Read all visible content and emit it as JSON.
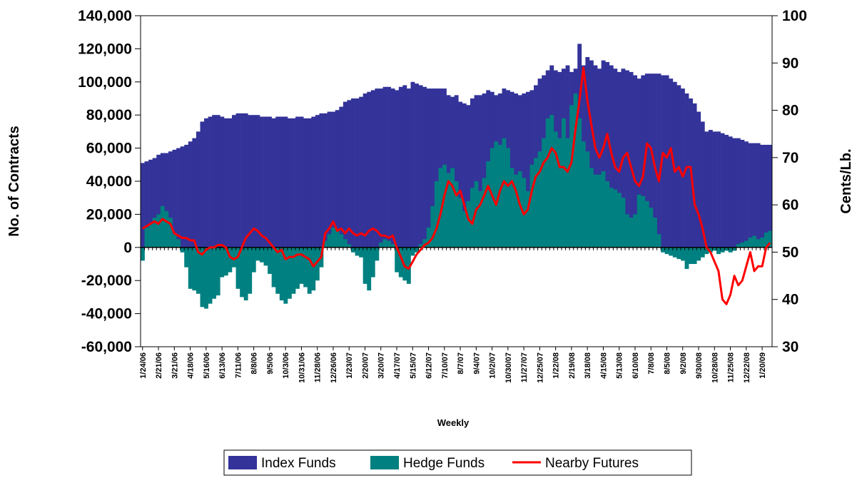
{
  "chart_data": {
    "type": "bar-line",
    "x_label": "Weekly",
    "y_label": "No. of Contracts",
    "y2_label": "Cents/Lb.",
    "categories": [
      "1/24/06",
      null,
      null,
      null,
      "2/21/06",
      null,
      null,
      null,
      "3/21/06",
      null,
      null,
      null,
      "4/18/06",
      null,
      null,
      null,
      "5/16/06",
      null,
      null,
      null,
      "6/13/06",
      null,
      null,
      null,
      "7/11/06",
      null,
      null,
      null,
      "8/8/06",
      null,
      null,
      null,
      "9/5/06",
      null,
      null,
      null,
      "10/3/06",
      null,
      null,
      null,
      "10/31/06",
      null,
      null,
      null,
      "11/28/06",
      null,
      null,
      null,
      "12/26/06",
      null,
      null,
      null,
      "1/23/07",
      null,
      null,
      null,
      "2/20/07",
      null,
      null,
      null,
      "3/20/07",
      null,
      null,
      null,
      "4/17/07",
      null,
      null,
      null,
      "5/15/07",
      null,
      null,
      null,
      "6/12/07",
      null,
      null,
      null,
      "7/10/07",
      null,
      null,
      null,
      "8/7/07",
      null,
      null,
      null,
      "9/4/07",
      null,
      null,
      null,
      "10/2/07",
      null,
      null,
      null,
      "10/30/07",
      null,
      null,
      null,
      "11/27/07",
      null,
      null,
      null,
      "12/25/07",
      null,
      null,
      null,
      "1/22/08",
      null,
      null,
      null,
      "2/19/08",
      null,
      null,
      null,
      "3/18/08",
      null,
      null,
      null,
      "4/15/08",
      null,
      null,
      null,
      "5/13/08",
      null,
      null,
      null,
      "6/10/08",
      null,
      null,
      null,
      "7/8/08",
      null,
      null,
      null,
      "8/5/08",
      null,
      null,
      null,
      "9/2/08",
      null,
      null,
      null,
      "9/30/08",
      null,
      null,
      null,
      "10/28/08",
      null,
      null,
      null,
      "11/25/08",
      null,
      null,
      null,
      "12/22/08",
      null,
      null,
      null,
      "1/20/09",
      null,
      null
    ],
    "series": [
      {
        "name": "Index Funds",
        "color": "#333399",
        "values": [
          51000,
          52000,
          53000,
          54000,
          56000,
          57000,
          57000,
          58000,
          59000,
          60000,
          61000,
          62000,
          64000,
          66000,
          70000,
          76000,
          78000,
          79000,
          80000,
          80000,
          79000,
          78000,
          78000,
          80000,
          81000,
          81000,
          81000,
          80000,
          80000,
          80000,
          79000,
          79000,
          79000,
          78000,
          79000,
          79000,
          79000,
          78000,
          78000,
          79000,
          79000,
          78000,
          78000,
          79000,
          80000,
          81000,
          81000,
          82000,
          82000,
          83000,
          85000,
          88000,
          89000,
          90000,
          90000,
          91000,
          93000,
          94000,
          95000,
          96000,
          96000,
          97000,
          97000,
          96000,
          95000,
          97000,
          98000,
          96000,
          100000,
          99000,
          98000,
          97000,
          96000,
          96000,
          96000,
          96000,
          96000,
          92000,
          91000,
          92000,
          88000,
          87000,
          86000,
          90000,
          92000,
          92000,
          93000,
          95000,
          94000,
          92000,
          93000,
          96000,
          95000,
          94000,
          93000,
          92000,
          93000,
          94000,
          95000,
          98000,
          102000,
          104000,
          107000,
          110000,
          107000,
          106000,
          108000,
          110000,
          106000,
          108000,
          123000,
          110000,
          115000,
          113000,
          110000,
          108000,
          113000,
          112000,
          110000,
          108000,
          106000,
          108000,
          107000,
          106000,
          104000,
          102000,
          104000,
          105000,
          105000,
          105000,
          105000,
          104000,
          104000,
          102000,
          100000,
          98000,
          96000,
          93000,
          90000,
          87000,
          82000,
          76000,
          70000,
          71000,
          70000,
          70000,
          69000,
          68000,
          67000,
          66000,
          66000,
          65000,
          64000,
          63000,
          63000,
          63000,
          62000,
          62000,
          62000
        ]
      },
      {
        "name": "Hedge Funds",
        "color": "#008080",
        "values": [
          -8000,
          12000,
          14000,
          18000,
          20000,
          25000,
          22000,
          18000,
          8000,
          5000,
          -3000,
          -12000,
          -25000,
          -26000,
          -28000,
          -36000,
          -37000,
          -34000,
          -31000,
          -29000,
          -18000,
          -17000,
          -15000,
          -12000,
          -25000,
          -30000,
          -32000,
          -28000,
          -15000,
          -8000,
          -9000,
          -11000,
          -16000,
          -24000,
          -28000,
          -32000,
          -34000,
          -31000,
          -28000,
          -25000,
          -22000,
          -24000,
          -28000,
          -26000,
          -20000,
          -12000,
          4000,
          8000,
          12000,
          11000,
          8000,
          5000,
          2000,
          -3000,
          -5000,
          -6000,
          -22000,
          -26000,
          -18000,
          -8000,
          3000,
          5000,
          4000,
          2000,
          -15000,
          -18000,
          -20000,
          -22000,
          -5000,
          -3000,
          2000,
          5000,
          12000,
          25000,
          40000,
          48000,
          50000,
          45000,
          48000,
          40000,
          30000,
          22000,
          28000,
          36000,
          40000,
          34000,
          42000,
          52000,
          60000,
          64000,
          62000,
          66000,
          60000,
          48000,
          44000,
          46000,
          42000,
          34000,
          50000,
          54000,
          58000,
          66000,
          78000,
          80000,
          70000,
          66000,
          78000,
          66000,
          86000,
          93000,
          78000,
          64000,
          58000,
          48000,
          44000,
          44000,
          46000,
          40000,
          36000,
          35000,
          33000,
          30000,
          20000,
          18000,
          20000,
          32000,
          31000,
          28000,
          24000,
          18000,
          8000,
          -3000,
          -4000,
          -5000,
          -6000,
          -7000,
          -8000,
          -13000,
          -10000,
          -10000,
          -8000,
          -6000,
          -4000,
          -3000,
          -2000,
          -4000,
          -3000,
          -2000,
          -3000,
          -2000,
          2000,
          3000,
          4000,
          6000,
          7000,
          5000,
          6000,
          9000,
          10000
        ]
      },
      {
        "name": "Nearby Futures",
        "color": "#ff0000",
        "axis": "y2",
        "values": [
          55,
          55.5,
          56,
          56.5,
          56,
          57,
          56.5,
          56,
          54,
          53.5,
          53,
          53,
          52.5,
          52.5,
          50,
          49.5,
          50.5,
          51,
          51,
          51.5,
          51.5,
          51,
          49,
          48.5,
          49,
          51,
          53,
          54,
          55,
          54.5,
          53.5,
          53,
          52,
          51,
          50,
          50.5,
          48.5,
          49,
          49,
          49.5,
          49.5,
          49,
          48.5,
          47,
          48,
          49,
          54,
          55,
          56.5,
          54.5,
          55,
          54,
          55,
          54,
          53.5,
          54,
          53.5,
          54.5,
          55,
          54.5,
          53.5,
          53.5,
          53,
          53.5,
          51,
          49,
          47,
          46.5,
          48,
          49.5,
          50.5,
          51.5,
          52,
          53,
          55,
          58,
          62,
          65,
          64,
          62,
          63,
          60,
          57,
          56,
          59,
          60,
          62,
          64,
          62,
          60,
          63,
          65,
          64,
          65,
          63,
          60,
          58,
          59,
          63,
          66,
          67,
          69,
          70,
          72,
          71,
          68,
          68,
          67,
          69,
          76,
          82,
          89,
          82,
          77,
          72,
          70,
          72,
          75,
          71,
          68,
          67,
          70,
          71,
          68,
          65,
          64,
          66,
          73,
          72,
          68,
          65,
          71,
          70,
          72,
          67,
          68,
          66,
          68,
          68,
          60,
          58,
          55,
          51,
          50,
          48,
          46,
          40,
          39,
          41,
          45,
          43,
          44,
          47,
          50,
          46,
          47,
          47,
          51,
          52
        ]
      }
    ],
    "ylim": [
      -60000,
      140000
    ],
    "yticks": [
      {
        "value": -60000,
        "label": "-60,000"
      },
      {
        "value": -40000,
        "label": "-40,000"
      },
      {
        "value": -20000,
        "label": "-20,000"
      },
      0,
      {
        "value": 20000,
        "label": "20,000"
      },
      {
        "value": 40000,
        "label": "40,000"
      },
      {
        "value": 60000,
        "label": "60,000"
      },
      {
        "value": 80000,
        "label": "80,000"
      },
      {
        "value": 100000,
        "label": "100,000"
      },
      {
        "value": 120000,
        "label": "120,000"
      },
      {
        "value": 140000,
        "label": "140,000"
      }
    ],
    "y2lim": [
      30,
      100
    ],
    "y2ticks": [
      30,
      40,
      50,
      60,
      70,
      80,
      90,
      100
    ]
  }
}
